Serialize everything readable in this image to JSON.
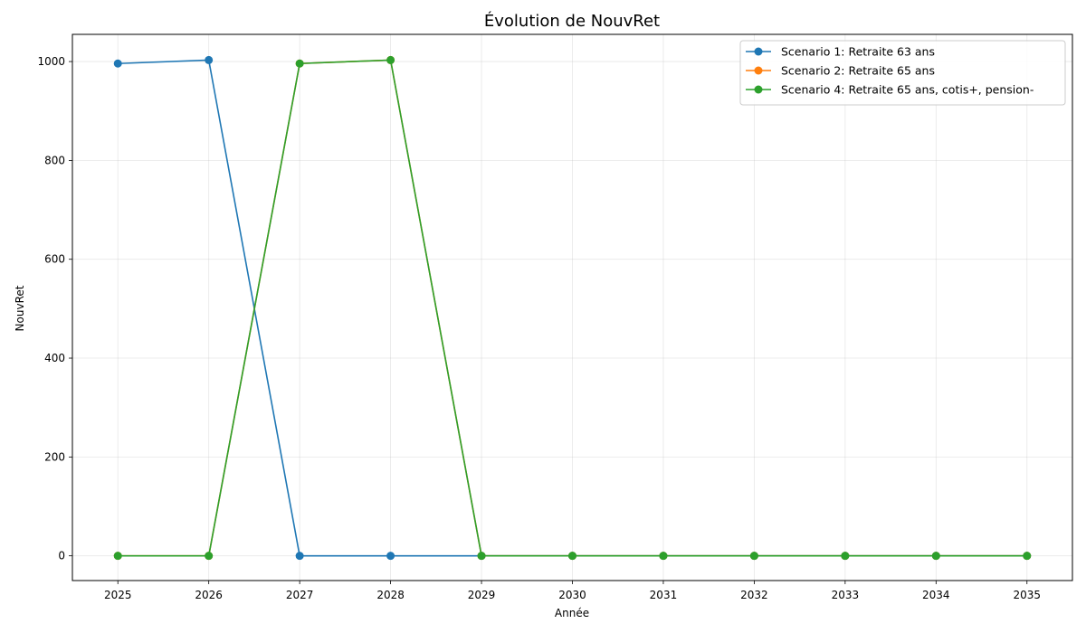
{
  "chart_data": {
    "type": "line",
    "title": "Évolution de NouvRet",
    "xlabel": "Année",
    "ylabel": "NouvRet",
    "x": [
      2025,
      2026,
      2027,
      2028,
      2029,
      2030,
      2031,
      2032,
      2033,
      2034,
      2035
    ],
    "x_ticks": [
      "2025",
      "2026",
      "2027",
      "2028",
      "2029",
      "2030",
      "2031",
      "2032",
      "2033",
      "2034",
      "2035"
    ],
    "y_ticks": [
      "0",
      "200",
      "400",
      "600",
      "800",
      "1000"
    ],
    "xlim": [
      2024.5,
      2035.5
    ],
    "ylim": [
      -50,
      1055
    ],
    "grid": true,
    "legend_position": "top-right",
    "series": [
      {
        "name": "Scenario 1: Retraite 63 ans",
        "color": "#1f77b4",
        "values": [
          996,
          1003,
          0,
          0,
          0,
          0,
          0,
          0,
          0,
          0,
          0
        ]
      },
      {
        "name": "Scenario 2: Retraite 65 ans",
        "color": "#ff7f0e",
        "values": [
          0,
          0,
          996,
          1003,
          0,
          0,
          0,
          0,
          0,
          0,
          0
        ]
      },
      {
        "name": "Scenario 4: Retraite 65 ans, cotis+, pension-",
        "color": "#2ca02c",
        "values": [
          0,
          0,
          996,
          1003,
          0,
          0,
          0,
          0,
          0,
          0,
          0
        ]
      }
    ]
  }
}
